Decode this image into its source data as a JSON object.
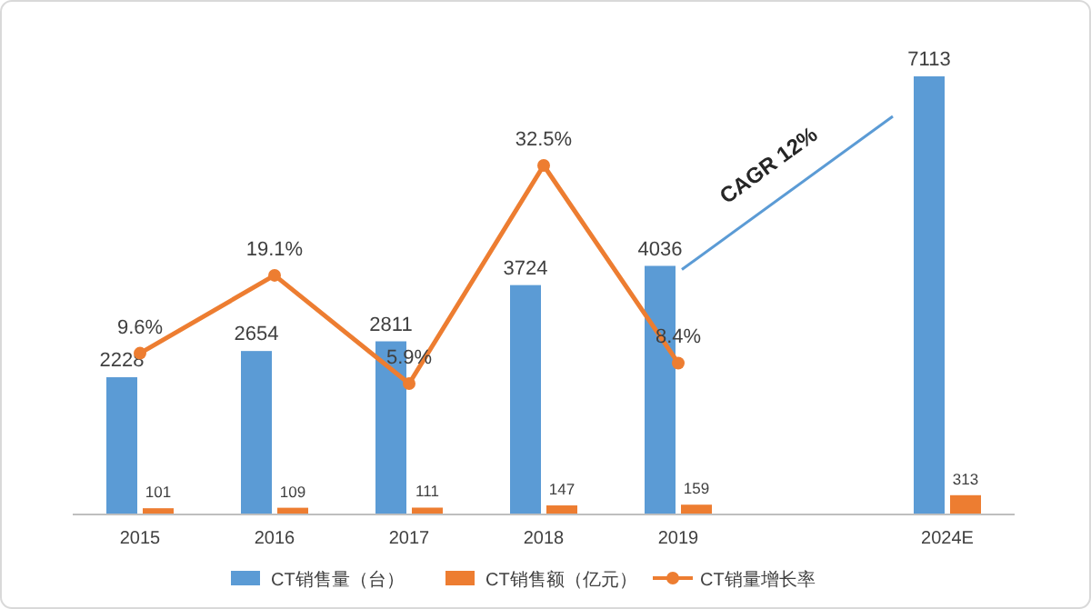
{
  "chart_data": {
    "type": "bar",
    "categories": [
      "2015",
      "2016",
      "2017",
      "2018",
      "2019",
      null,
      "2024E"
    ],
    "series": [
      {
        "name": "CT销售量（台）",
        "color": "#5b9bd5",
        "values": [
          2228,
          2654,
          2811,
          3724,
          4036,
          null,
          7113
        ]
      },
      {
        "name": "CT销售额（亿元）",
        "color": "#ed7d31",
        "values": [
          101,
          109,
          111,
          147,
          159,
          null,
          313
        ]
      },
      {
        "name": "CT销量增长率",
        "type": "line",
        "axis": "y2",
        "color": "#ed7d31",
        "values": [
          9.6,
          19.1,
          5.9,
          32.5,
          8.4,
          null,
          null
        ],
        "value_labels": [
          "9.6%",
          "19.1%",
          "5.9%",
          "32.5%",
          "8.4%",
          null,
          null
        ]
      }
    ],
    "tick_labels": "x",
    "data_labels": true,
    "marker": "circle",
    "legend": "bottom",
    "annotations": [
      "CAGR 12%"
    ]
  }
}
